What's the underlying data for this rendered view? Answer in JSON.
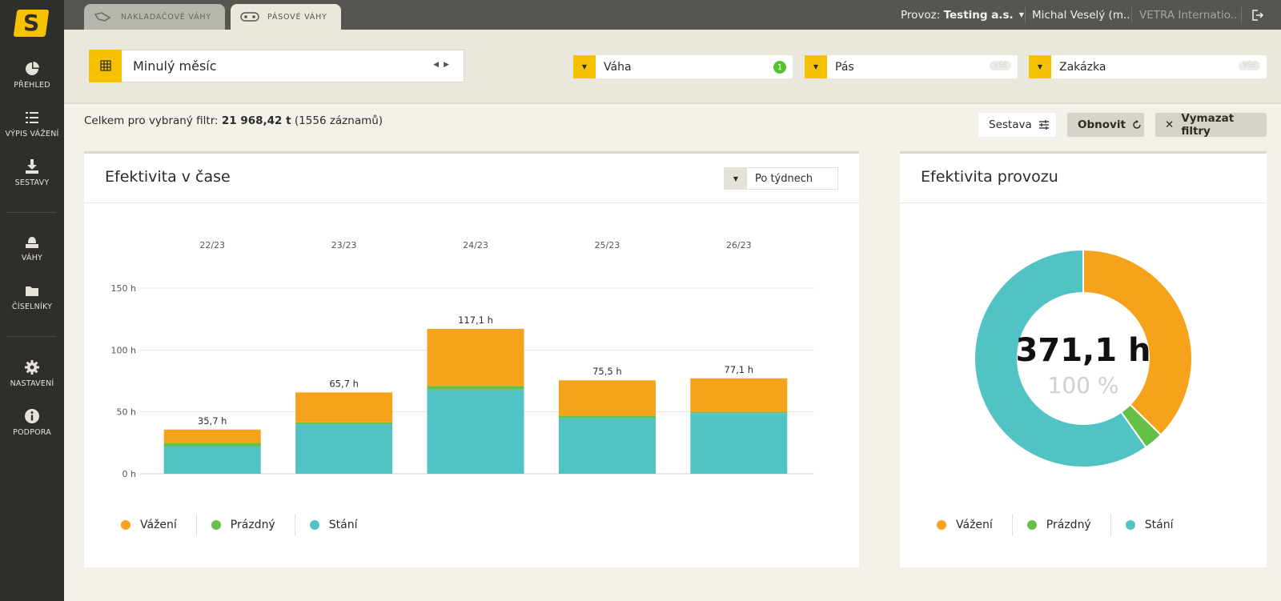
{
  "sidebar": {
    "logo": "S",
    "items": [
      {
        "label": "PŘEHLED",
        "icon": "pie-chart-icon"
      },
      {
        "label": "VÝPIS VÁŽENÍ",
        "icon": "list-icon"
      },
      {
        "label": "SESTAVY",
        "icon": "download-icon"
      },
      {
        "label": "VÁHY",
        "icon": "scale-icon"
      },
      {
        "label": "ČÍSELNÍKY",
        "icon": "folder-icon"
      },
      {
        "label": "NASTAVENÍ",
        "icon": "gear-icon"
      },
      {
        "label": "PODPORA",
        "icon": "info-icon"
      }
    ]
  },
  "tabs": [
    {
      "label": "NAKLADAČOVÉ VÁHY",
      "active": false
    },
    {
      "label": "PÁSOVÉ VÁHY",
      "active": true
    }
  ],
  "header": {
    "provoz_prefix": "Provoz:",
    "provoz_name": "Testing a.s.",
    "user": "Michal Veselý (m...",
    "company": "VETRA Internatio..."
  },
  "filters": {
    "date_range": "Minulý měsíc",
    "items": [
      {
        "label": "Váha",
        "badge": "1"
      },
      {
        "label": "Pás",
        "badge": "VŠE"
      },
      {
        "label": "Zakázka",
        "badge": "VŠE"
      }
    ]
  },
  "summary": {
    "prefix": "Celkem pro vybraný filtr:",
    "total": "21 968,42 t",
    "records": "(1556 záznamů)"
  },
  "buttons": {
    "sestava": "Sestava",
    "obnovit": "Obnovit",
    "vymazat": "Vymazat filtry"
  },
  "left_card": {
    "title": "Efektivita v čase",
    "period_select": "Po týdnech"
  },
  "right_card": {
    "title": "Efektivita provozu",
    "total": "371,1 h",
    "percent": "100 %"
  },
  "legend": [
    {
      "label": "Vážení",
      "color": "#f7a21b"
    },
    {
      "label": "Prázdný",
      "color": "#66bf46"
    },
    {
      "label": "Stání",
      "color": "#52c3c5"
    }
  ],
  "colors": {
    "accent": "#f5c100",
    "vazeni": "#f7a21b",
    "prazdny": "#66bf46",
    "stani": "#52c3c5"
  },
  "chart_data": [
    {
      "type": "bar",
      "stacked": true,
      "categories": [
        "22/23",
        "23/23",
        "24/23",
        "25/23",
        "26/23"
      ],
      "series": [
        {
          "name": "Stání",
          "values": [
            22,
            40,
            68,
            45,
            49
          ]
        },
        {
          "name": "Prázdný",
          "values": [
            3,
            1.5,
            3,
            2,
            1
          ]
        },
        {
          "name": "Vážení",
          "values": [
            10.7,
            24.2,
            46.1,
            28.5,
            27.1
          ]
        }
      ],
      "totals_labels": [
        "35,7 h",
        "65,7 h",
        "117,1 h",
        "75,5 h",
        "77,1 h"
      ],
      "yticks": [
        "0 h",
        "50 h",
        "100 h",
        "150 h"
      ],
      "ylim": [
        0,
        150
      ],
      "grid": true,
      "legend": "bottom-left"
    },
    {
      "type": "pie",
      "donut": true,
      "labels": [
        "Vážení",
        "Prázdný",
        "Stání"
      ],
      "values": [
        138.7,
        10.5,
        221.9
      ],
      "center_label": "371,1 h",
      "center_sublabel": "100 %",
      "legend": "bottom"
    }
  ]
}
